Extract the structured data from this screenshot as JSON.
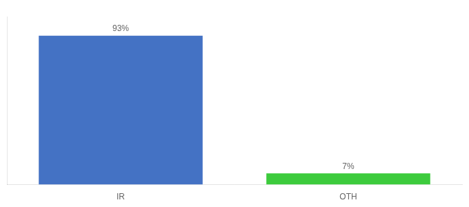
{
  "chart_data": {
    "type": "bar",
    "categories": [
      "IR",
      "OTH"
    ],
    "values": [
      93,
      7
    ],
    "value_labels": [
      "93%",
      "7%"
    ],
    "colors": [
      "#4472C4",
      "#3DCB3D"
    ],
    "ylim": [
      0,
      105
    ],
    "data_labels": true,
    "tick_labels": "x",
    "grid": false
  }
}
